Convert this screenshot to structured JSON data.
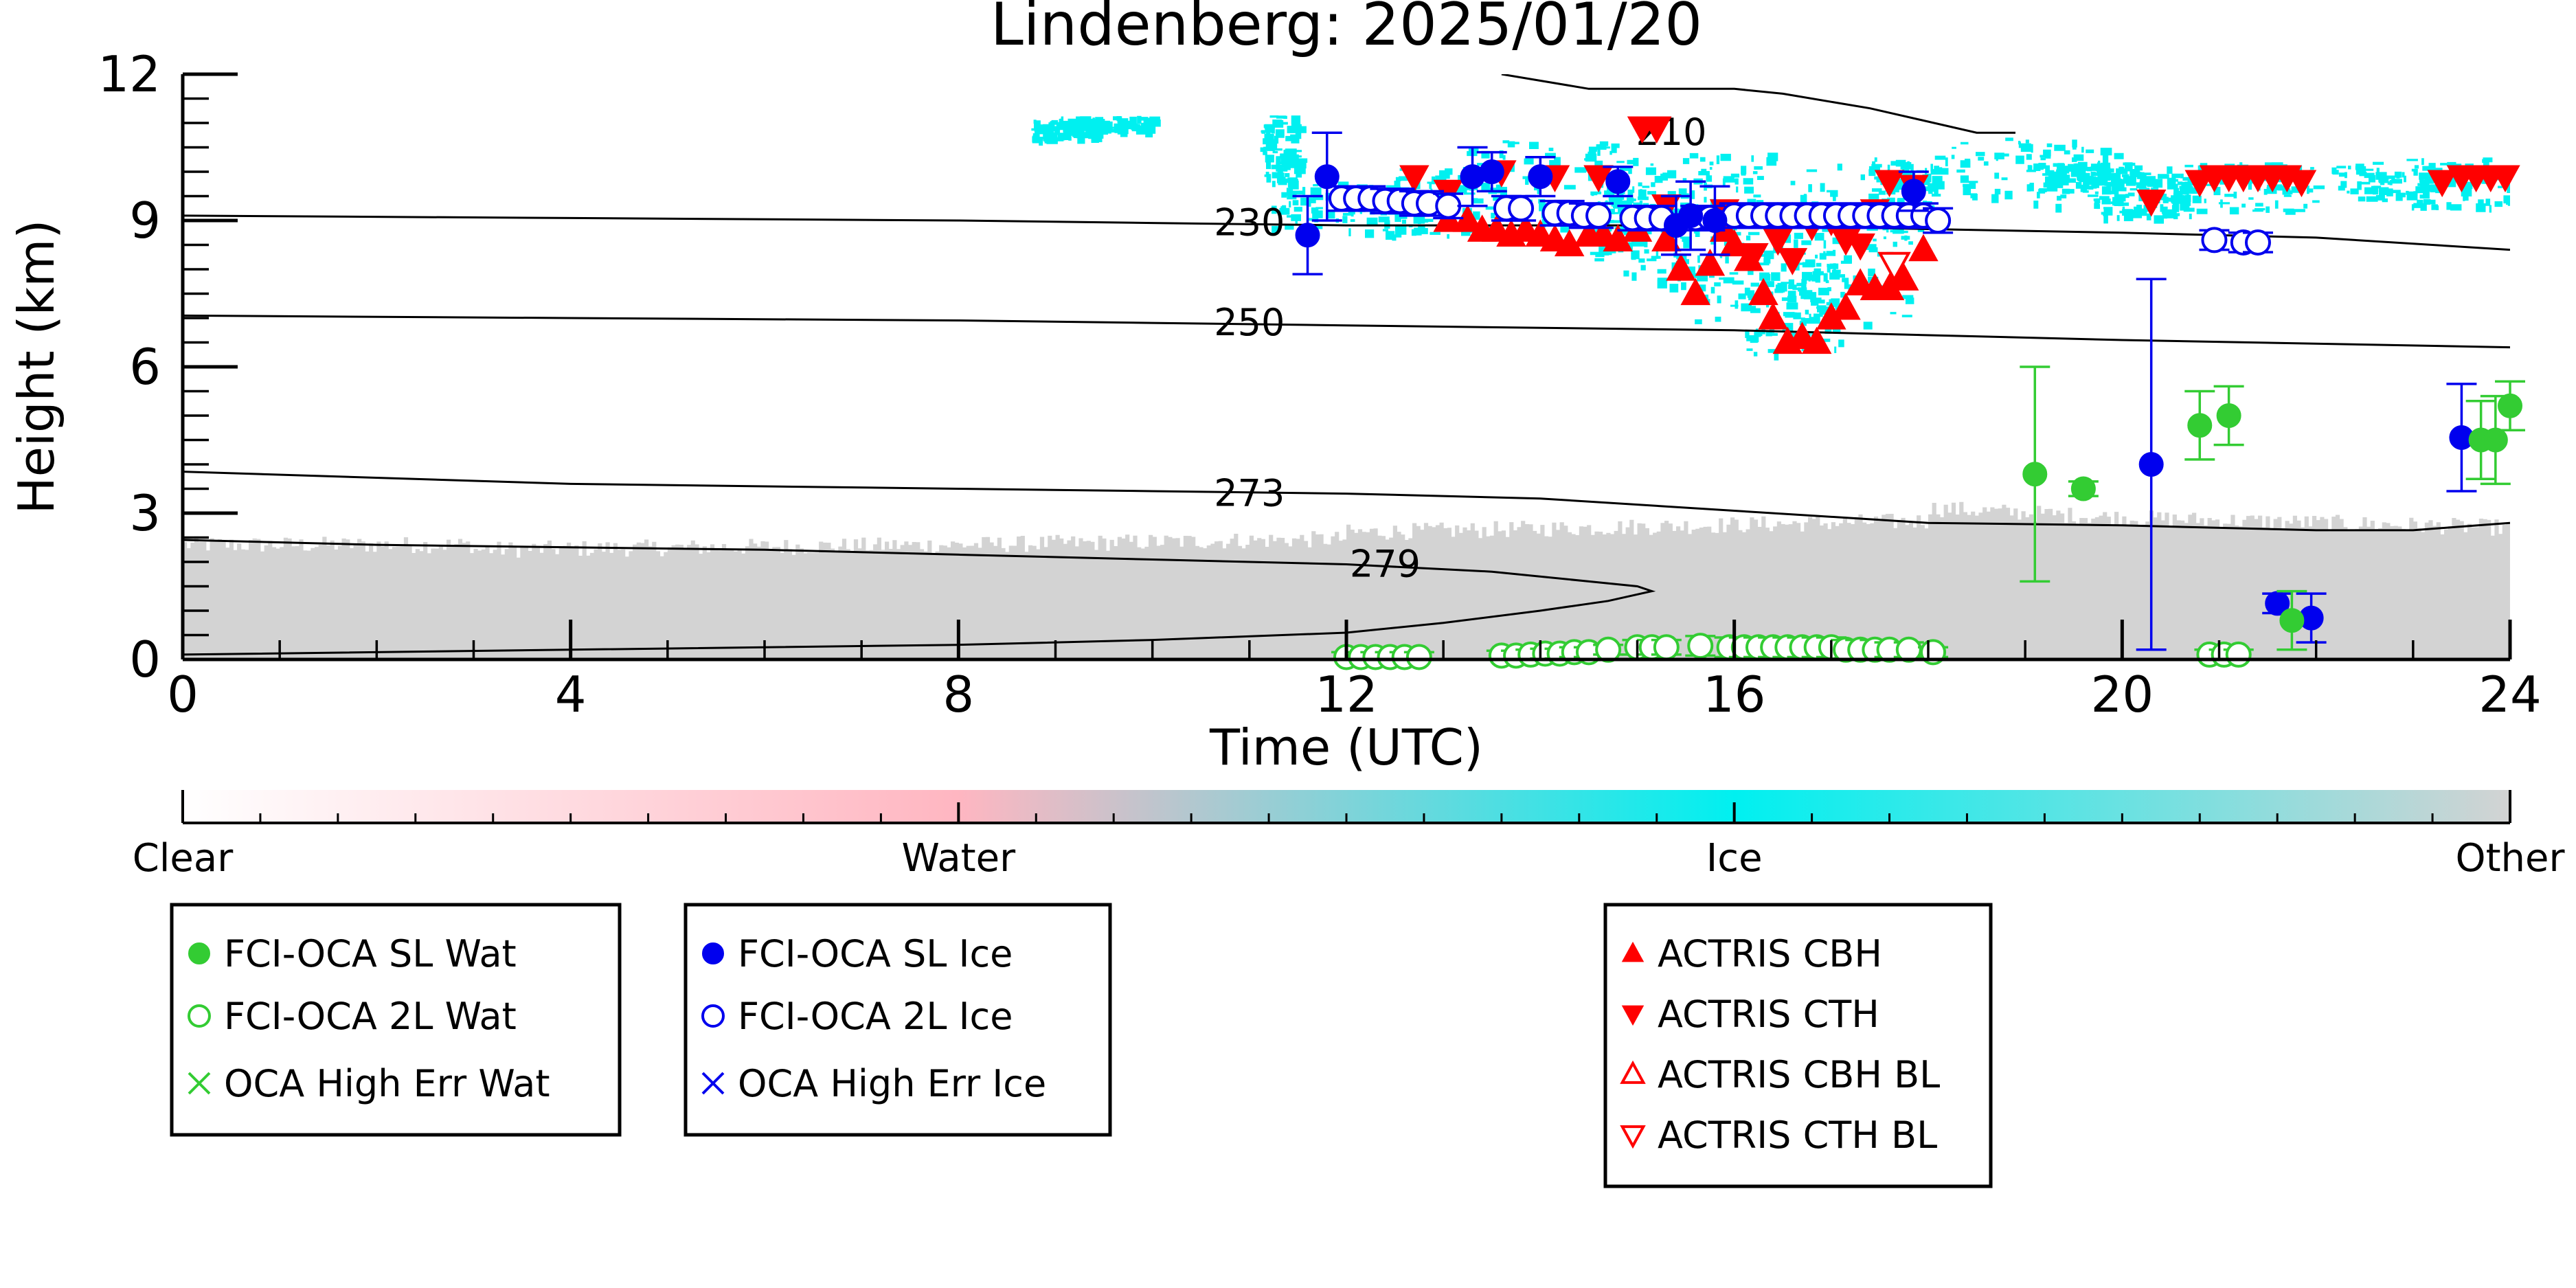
{
  "chart_data": {
    "type": "scatter",
    "title": "Lindenberg: 2025/01/20",
    "xlabel": "Time (UTC)",
    "ylabel": "Height (km)",
    "xlim": [
      0,
      24
    ],
    "ylim": [
      0,
      12
    ],
    "x_ticks": [
      "0",
      "4",
      "8",
      "12",
      "16",
      "20",
      "24"
    ],
    "y_ticks": [
      "0",
      "3",
      "6",
      "9",
      "12"
    ],
    "grid": false,
    "colorbar": {
      "labels": [
        "Clear",
        "Water",
        "Ice",
        "Other"
      ],
      "colors": [
        "#ffffff",
        "#ffb6c1",
        "#00f0f0",
        "#d3d3d3"
      ]
    },
    "contours": [
      {
        "label": "210",
        "points": [
          [
            13.6,
            12.0
          ],
          [
            14.5,
            11.7
          ],
          [
            16.0,
            11.7
          ],
          [
            16.5,
            11.6
          ],
          [
            17.4,
            11.3
          ],
          [
            18.5,
            10.8
          ],
          [
            18.9,
            10.8
          ]
        ]
      },
      {
        "label": "230",
        "points": [
          [
            0,
            9.1
          ],
          [
            4,
            9.05
          ],
          [
            8,
            9.0
          ],
          [
            10,
            8.95
          ],
          [
            12,
            8.9
          ],
          [
            16,
            8.9
          ],
          [
            20,
            8.75
          ],
          [
            22,
            8.65
          ],
          [
            24,
            8.4
          ]
        ]
      },
      {
        "label": "250",
        "points": [
          [
            0,
            7.05
          ],
          [
            4,
            7.0
          ],
          [
            8,
            6.95
          ],
          [
            10,
            6.9
          ],
          [
            12,
            6.85
          ],
          [
            16,
            6.75
          ],
          [
            20,
            6.55
          ],
          [
            24,
            6.4
          ]
        ]
      },
      {
        "label": "273",
        "points": [
          [
            0,
            3.85
          ],
          [
            4,
            3.6
          ],
          [
            8,
            3.5
          ],
          [
            10,
            3.45
          ],
          [
            12,
            3.4
          ],
          [
            14,
            3.3
          ],
          [
            16,
            3.05
          ],
          [
            18,
            2.8
          ],
          [
            20,
            2.75
          ],
          [
            22,
            2.65
          ],
          [
            23,
            2.65
          ],
          [
            24,
            2.8
          ]
        ]
      },
      {
        "label": "279",
        "points": [
          [
            0,
            2.45
          ],
          [
            2,
            2.35
          ],
          [
            4,
            2.3
          ],
          [
            6,
            2.25
          ],
          [
            8,
            2.15
          ],
          [
            10,
            2.05
          ],
          [
            12,
            1.95
          ],
          [
            13.5,
            1.8
          ],
          [
            14.5,
            1.6
          ],
          [
            15.0,
            1.5
          ],
          [
            15.15,
            1.4
          ],
          [
            14.7,
            1.2
          ],
          [
            14.0,
            1.0
          ],
          [
            13.0,
            0.75
          ],
          [
            12.0,
            0.55
          ],
          [
            10,
            0.4
          ],
          [
            8,
            0.3
          ],
          [
            4,
            0.2
          ],
          [
            0,
            0.1
          ]
        ]
      }
    ],
    "series": [
      {
        "name": "FCI-OCA SL Wat",
        "color": "#33cc33",
        "marker": "filled-circle",
        "points": [
          {
            "x": 19.1,
            "y": 3.8,
            "err": 2.2
          },
          {
            "x": 19.6,
            "y": 3.5,
            "err": 0.15
          },
          {
            "x": 20.8,
            "y": 4.8,
            "err": 0.7
          },
          {
            "x": 21.1,
            "y": 5.0,
            "err": 0.6
          },
          {
            "x": 21.75,
            "y": 0.8,
            "err": 0.6
          },
          {
            "x": 23.7,
            "y": 4.5,
            "err": 0.8
          },
          {
            "x": 23.85,
            "y": 4.5,
            "err": 0.9
          },
          {
            "x": 24.0,
            "y": 5.2,
            "err": 0.5
          }
        ]
      },
      {
        "name": "FCI-OCA 2L Wat",
        "color": "#33cc33",
        "marker": "open-circle",
        "points": [
          {
            "x": 12.0,
            "y": 0.05,
            "err": 0.1
          },
          {
            "x": 12.15,
            "y": 0.05,
            "err": 0.1
          },
          {
            "x": 12.3,
            "y": 0.05,
            "err": 0.1
          },
          {
            "x": 12.45,
            "y": 0.05,
            "err": 0.1
          },
          {
            "x": 12.6,
            "y": 0.05,
            "err": 0.1
          },
          {
            "x": 12.75,
            "y": 0.05,
            "err": 0.1
          },
          {
            "x": 13.6,
            "y": 0.08,
            "err": 0.1
          },
          {
            "x": 13.75,
            "y": 0.08,
            "err": 0.1
          },
          {
            "x": 13.9,
            "y": 0.1,
            "err": 0.1
          },
          {
            "x": 14.05,
            "y": 0.12,
            "err": 0.1
          },
          {
            "x": 14.2,
            "y": 0.12,
            "err": 0.1
          },
          {
            "x": 14.35,
            "y": 0.15,
            "err": 0.1
          },
          {
            "x": 14.5,
            "y": 0.15,
            "err": 0.1
          },
          {
            "x": 14.7,
            "y": 0.2,
            "err": 0.1
          },
          {
            "x": 15.0,
            "y": 0.25,
            "err": 0.15
          },
          {
            "x": 15.15,
            "y": 0.25,
            "err": 0.15
          },
          {
            "x": 15.3,
            "y": 0.25,
            "err": 0.15
          },
          {
            "x": 15.65,
            "y": 0.28,
            "err": 0.2
          },
          {
            "x": 15.95,
            "y": 0.25,
            "err": 0.2
          },
          {
            "x": 16.1,
            "y": 0.25,
            "err": 0.2
          },
          {
            "x": 16.25,
            "y": 0.25,
            "err": 0.2
          },
          {
            "x": 16.4,
            "y": 0.25,
            "err": 0.2
          },
          {
            "x": 16.55,
            "y": 0.25,
            "err": 0.2
          },
          {
            "x": 16.7,
            "y": 0.25,
            "err": 0.2
          },
          {
            "x": 16.85,
            "y": 0.25,
            "err": 0.2
          },
          {
            "x": 17.0,
            "y": 0.25,
            "err": 0.2
          },
          {
            "x": 17.15,
            "y": 0.2,
            "err": 0.2
          },
          {
            "x": 17.3,
            "y": 0.2,
            "err": 0.2
          },
          {
            "x": 17.45,
            "y": 0.2,
            "err": 0.2
          },
          {
            "x": 17.6,
            "y": 0.2,
            "err": 0.15
          },
          {
            "x": 17.8,
            "y": 0.2,
            "err": 0.15
          },
          {
            "x": 18.05,
            "y": 0.15,
            "err": 0.1
          },
          {
            "x": 20.9,
            "y": 0.1,
            "err": 0.1
          },
          {
            "x": 21.05,
            "y": 0.1,
            "err": 0.1
          },
          {
            "x": 21.2,
            "y": 0.1,
            "err": 0.1
          }
        ]
      },
      {
        "name": "OCA High Err Wat",
        "color": "#33cc33",
        "marker": "x",
        "points": []
      },
      {
        "name": "FCI-OCA SL Ice",
        "color": "#0000ee",
        "marker": "filled-circle",
        "points": [
          {
            "x": 11.6,
            "y": 8.7,
            "err": 0.8
          },
          {
            "x": 11.8,
            "y": 9.9,
            "err": 0.9
          },
          {
            "x": 13.3,
            "y": 9.9,
            "err": 0.6
          },
          {
            "x": 13.5,
            "y": 10.0,
            "err": 0.4
          },
          {
            "x": 14.0,
            "y": 9.9,
            "err": 0.4
          },
          {
            "x": 14.8,
            "y": 9.8,
            "err": 0.3
          },
          {
            "x": 15.4,
            "y": 8.9,
            "err": 0.6
          },
          {
            "x": 15.55,
            "y": 9.1,
            "err": 0.7
          },
          {
            "x": 15.8,
            "y": 9.0,
            "err": 0.7
          },
          {
            "x": 17.85,
            "y": 9.6,
            "err": 0.4
          },
          {
            "x": 20.3,
            "y": 4.0,
            "err": 3.8
          },
          {
            "x": 21.6,
            "y": 1.15,
            "err": 0.2
          },
          {
            "x": 21.95,
            "y": 0.85,
            "err": 0.5
          },
          {
            "x": 23.5,
            "y": 4.55,
            "err": 1.1
          }
        ]
      },
      {
        "name": "FCI-OCA 2L Ice",
        "color": "#0000ee",
        "marker": "open-circle",
        "points": [
          {
            "x": 11.95,
            "y": 9.45,
            "err": 0.25
          },
          {
            "x": 12.1,
            "y": 9.45,
            "err": 0.25
          },
          {
            "x": 12.25,
            "y": 9.45,
            "err": 0.25
          },
          {
            "x": 12.4,
            "y": 9.4,
            "err": 0.25
          },
          {
            "x": 12.55,
            "y": 9.4,
            "err": 0.25
          },
          {
            "x": 12.7,
            "y": 9.35,
            "err": 0.25
          },
          {
            "x": 12.85,
            "y": 9.35,
            "err": 0.25
          },
          {
            "x": 13.05,
            "y": 9.3,
            "err": 0.25
          },
          {
            "x": 13.65,
            "y": 9.25,
            "err": 0.25
          },
          {
            "x": 13.8,
            "y": 9.25,
            "err": 0.25
          },
          {
            "x": 14.15,
            "y": 9.15,
            "err": 0.25
          },
          {
            "x": 14.3,
            "y": 9.15,
            "err": 0.25
          },
          {
            "x": 14.45,
            "y": 9.1,
            "err": 0.25
          },
          {
            "x": 14.6,
            "y": 9.1,
            "err": 0.25
          },
          {
            "x": 14.95,
            "y": 9.05,
            "err": 0.25
          },
          {
            "x": 15.1,
            "y": 9.05,
            "err": 0.25
          },
          {
            "x": 15.25,
            "y": 9.05,
            "err": 0.25
          },
          {
            "x": 15.6,
            "y": 9.05,
            "err": 0.25
          },
          {
            "x": 15.75,
            "y": 9.05,
            "err": 0.25
          },
          {
            "x": 16.0,
            "y": 9.1,
            "err": 0.25
          },
          {
            "x": 16.15,
            "y": 9.1,
            "err": 0.25
          },
          {
            "x": 16.3,
            "y": 9.1,
            "err": 0.25
          },
          {
            "x": 16.45,
            "y": 9.1,
            "err": 0.25
          },
          {
            "x": 16.6,
            "y": 9.1,
            "err": 0.25
          },
          {
            "x": 16.75,
            "y": 9.1,
            "err": 0.25
          },
          {
            "x": 16.9,
            "y": 9.1,
            "err": 0.25
          },
          {
            "x": 17.05,
            "y": 9.1,
            "err": 0.25
          },
          {
            "x": 17.2,
            "y": 9.1,
            "err": 0.25
          },
          {
            "x": 17.35,
            "y": 9.1,
            "err": 0.25
          },
          {
            "x": 17.5,
            "y": 9.1,
            "err": 0.25
          },
          {
            "x": 17.65,
            "y": 9.1,
            "err": 0.25
          },
          {
            "x": 17.8,
            "y": 9.1,
            "err": 0.25
          },
          {
            "x": 17.95,
            "y": 9.1,
            "err": 0.25
          },
          {
            "x": 18.1,
            "y": 9.0,
            "err": 0.25
          },
          {
            "x": 20.95,
            "y": 8.6,
            "err": 0.2
          },
          {
            "x": 21.25,
            "y": 8.55,
            "err": 0.2
          },
          {
            "x": 21.4,
            "y": 8.55,
            "err": 0.2
          }
        ]
      },
      {
        "name": "OCA High Err Ice",
        "color": "#0000ee",
        "marker": "x",
        "points": []
      },
      {
        "name": "ACTRIS CBH",
        "color": "#ff0000",
        "marker": "triangle-up",
        "points": [
          {
            "x": 13.05,
            "y": 9.0
          },
          {
            "x": 13.25,
            "y": 9.0
          },
          {
            "x": 13.4,
            "y": 8.8
          },
          {
            "x": 13.55,
            "y": 8.8
          },
          {
            "x": 13.7,
            "y": 8.7
          },
          {
            "x": 13.85,
            "y": 8.8
          },
          {
            "x": 14.0,
            "y": 8.7
          },
          {
            "x": 14.15,
            "y": 8.6
          },
          {
            "x": 14.3,
            "y": 8.5
          },
          {
            "x": 14.5,
            "y": 8.7
          },
          {
            "x": 14.65,
            "y": 8.7
          },
          {
            "x": 14.8,
            "y": 8.6
          },
          {
            "x": 15.0,
            "y": 8.8
          },
          {
            "x": 15.3,
            "y": 8.6
          },
          {
            "x": 15.45,
            "y": 8.0
          },
          {
            "x": 15.6,
            "y": 7.5
          },
          {
            "x": 15.75,
            "y": 8.1
          },
          {
            "x": 15.9,
            "y": 8.8
          },
          {
            "x": 16.0,
            "y": 8.5
          },
          {
            "x": 16.15,
            "y": 8.2
          },
          {
            "x": 16.3,
            "y": 7.5
          },
          {
            "x": 16.4,
            "y": 7.0
          },
          {
            "x": 16.55,
            "y": 6.5
          },
          {
            "x": 16.7,
            "y": 6.6
          },
          {
            "x": 16.85,
            "y": 6.5
          },
          {
            "x": 17.0,
            "y": 7.0
          },
          {
            "x": 17.15,
            "y": 7.2
          },
          {
            "x": 17.3,
            "y": 7.7
          },
          {
            "x": 17.45,
            "y": 7.6
          },
          {
            "x": 17.6,
            "y": 7.6
          },
          {
            "x": 17.75,
            "y": 7.8
          },
          {
            "x": 17.95,
            "y": 8.4
          }
        ]
      },
      {
        "name": "ACTRIS CTH",
        "color": "#ff0000",
        "marker": "triangle-down",
        "points": [
          {
            "x": 12.7,
            "y": 9.9
          },
          {
            "x": 13.05,
            "y": 9.6
          },
          {
            "x": 13.6,
            "y": 10.0
          },
          {
            "x": 14.15,
            "y": 9.9
          },
          {
            "x": 14.6,
            "y": 9.9
          },
          {
            "x": 15.05,
            "y": 10.9
          },
          {
            "x": 15.2,
            "y": 10.9
          },
          {
            "x": 15.3,
            "y": 9.3
          },
          {
            "x": 15.9,
            "y": 9.2
          },
          {
            "x": 16.2,
            "y": 8.3
          },
          {
            "x": 16.45,
            "y": 8.6
          },
          {
            "x": 16.6,
            "y": 8.2
          },
          {
            "x": 16.8,
            "y": 8.9
          },
          {
            "x": 17.0,
            "y": 9.0
          },
          {
            "x": 17.15,
            "y": 8.6
          },
          {
            "x": 17.3,
            "y": 8.5
          },
          {
            "x": 17.45,
            "y": 9.2
          },
          {
            "x": 17.6,
            "y": 9.8
          },
          {
            "x": 17.85,
            "y": 9.7
          },
          {
            "x": 20.3,
            "y": 9.4
          },
          {
            "x": 20.8,
            "y": 9.8
          },
          {
            "x": 20.95,
            "y": 9.9
          },
          {
            "x": 21.1,
            "y": 9.9
          },
          {
            "x": 21.25,
            "y": 9.9
          },
          {
            "x": 21.4,
            "y": 9.9
          },
          {
            "x": 21.55,
            "y": 9.9
          },
          {
            "x": 21.7,
            "y": 9.9
          },
          {
            "x": 21.85,
            "y": 9.8
          },
          {
            "x": 23.3,
            "y": 9.8
          },
          {
            "x": 23.5,
            "y": 9.9
          },
          {
            "x": 23.65,
            "y": 9.9
          },
          {
            "x": 23.8,
            "y": 9.9
          },
          {
            "x": 23.95,
            "y": 9.9
          }
        ]
      },
      {
        "name": "ACTRIS CBH BL",
        "color": "#ff0000",
        "marker": "open-triangle-up",
        "points": []
      },
      {
        "name": "ACTRIS CTH BL",
        "color": "#ff0000",
        "marker": "open-triangle-down",
        "points": [
          {
            "x": 17.65,
            "y": 8.1
          }
        ]
      }
    ],
    "legend_groups": [
      [
        "FCI-OCA SL Wat",
        "FCI-OCA 2L Wat",
        "OCA High Err Wat"
      ],
      [
        "FCI-OCA SL Ice",
        "FCI-OCA 2L Ice",
        "OCA High Err Ice"
      ],
      [
        "ACTRIS CBH",
        "ACTRIS CTH",
        "ACTRIS CBH BL",
        "ACTRIS CTH BL"
      ]
    ]
  }
}
